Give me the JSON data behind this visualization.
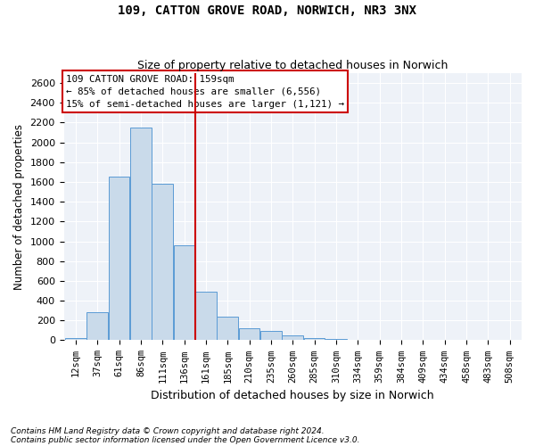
{
  "title1": "109, CATTON GROVE ROAD, NORWICH, NR3 3NX",
  "title2": "Size of property relative to detached houses in Norwich",
  "xlabel": "Distribution of detached houses by size in Norwich",
  "ylabel": "Number of detached properties",
  "footnote1": "Contains HM Land Registry data © Crown copyright and database right 2024.",
  "footnote2": "Contains public sector information licensed under the Open Government Licence v3.0.",
  "annotation_line1": "109 CATTON GROVE ROAD: 159sqm",
  "annotation_line2": "← 85% of detached houses are smaller (6,556)",
  "annotation_line3": "15% of semi-detached houses are larger (1,121) →",
  "bar_color": "#c9daea",
  "bar_edge_color": "#5b9bd5",
  "vline_color": "#cc0000",
  "categories": [
    "12sqm",
    "37sqm",
    "61sqm",
    "86sqm",
    "111sqm",
    "136sqm",
    "161sqm",
    "185sqm",
    "210sqm",
    "235sqm",
    "260sqm",
    "285sqm",
    "310sqm",
    "334sqm",
    "359sqm",
    "384sqm",
    "409sqm",
    "434sqm",
    "458sqm",
    "483sqm",
    "508sqm"
  ],
  "values": [
    25,
    280,
    1650,
    2150,
    1580,
    960,
    490,
    240,
    120,
    95,
    45,
    25,
    10,
    5,
    3,
    2,
    1,
    1,
    0,
    0,
    0
  ],
  "ylim": [
    0,
    2700
  ],
  "yticks": [
    0,
    200,
    400,
    600,
    800,
    1000,
    1200,
    1400,
    1600,
    1800,
    2000,
    2200,
    2400,
    2600
  ],
  "box_color": "#cc0000",
  "background_color": "#eef2f8",
  "vline_bar_idx": 6,
  "figwidth": 6.0,
  "figheight": 5.0,
  "dpi": 100
}
